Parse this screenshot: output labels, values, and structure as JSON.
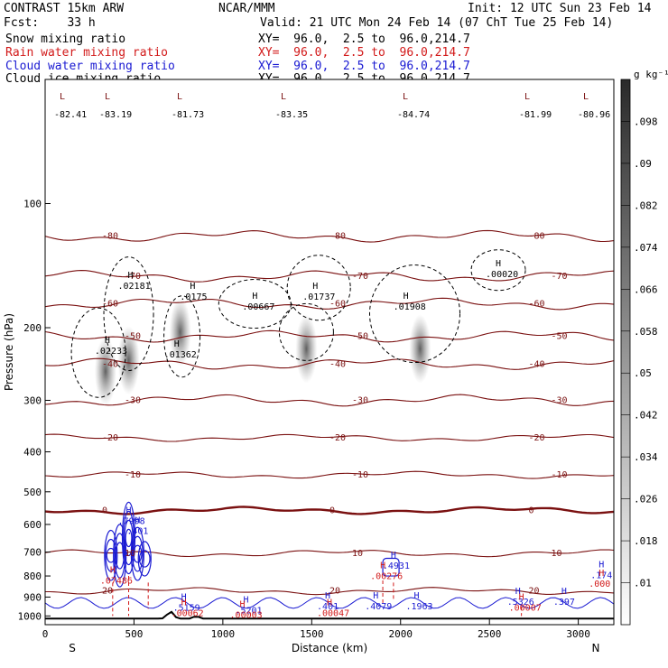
{
  "header": {
    "model": "CONTRAST 15km ARW",
    "forecast": "Fcst:    33 h",
    "center": "NCAR/MMM",
    "init": "Init: 12 UTC Sun 23 Feb 14",
    "valid": "Valid: 21 UTC Mon 24 Feb 14 (07 ChT Tue 25 Feb 14)",
    "fields": [
      {
        "name": "Snow mixing ratio",
        "xy": "XY=  96.0,  2.5 to  96.0,214.7",
        "color": "#000000"
      },
      {
        "name": "Rain water mixing ratio",
        "xy": "XY=  96.0,  2.5 to  96.0,214.7",
        "color": "#d21a1a"
      },
      {
        "name": "Cloud water mixing ratio",
        "xy": "XY=  96.0,  2.5 to  96.0,214.7",
        "color": "#1a1ad2"
      },
      {
        "name": "Cloud ice mixing ratio",
        "xy": "XY=  96.0,  2.5 to  96.0,214.7",
        "color": "#000000"
      }
    ]
  },
  "chart_data": {
    "type": "contour",
    "xlabel": "Distance (km)",
    "ylabel": "Pressure (hPa)",
    "xlim": [
      0,
      3200
    ],
    "ylim": [
      1050,
      50
    ],
    "y_scale": "log",
    "x_ticks": [
      0,
      500,
      1000,
      1500,
      2000,
      2500,
      3000
    ],
    "y_ticks": [
      100,
      200,
      300,
      400,
      500,
      600,
      700,
      800,
      900,
      1000
    ],
    "x_end_labels": {
      "left": "S",
      "right": "N"
    },
    "colorbar": {
      "unit": "g kg⁻¹",
      "ticks": [
        ".01",
        ".018",
        ".026",
        ".034",
        ".042",
        ".05",
        ".058",
        ".066",
        ".074",
        ".082",
        ".09",
        ".098"
      ]
    },
    "temperature_contours": {
      "color": "#7a1010",
      "levels": [
        {
          "label": "-80",
          "p": 120
        },
        {
          "label": "-70",
          "p": 150
        },
        {
          "label": "-60",
          "p": 175
        },
        {
          "label": "-50",
          "p": 210
        },
        {
          "label": "-40",
          "p": 245
        },
        {
          "label": "-30",
          "p": 300
        },
        {
          "label": "-20",
          "p": 370
        },
        {
          "label": "-10",
          "p": 455
        },
        {
          "label": "0",
          "p": 555
        },
        {
          "label": "10",
          "p": 705
        },
        {
          "label": "20",
          "p": 870
        }
      ],
      "minima": [
        "-82.41",
        "-83.19",
        "-81.73",
        "-83.35",
        "-84.74",
        "-81.99",
        "-80.96"
      ]
    },
    "ice_maxima": [
      {
        "label": ".02233",
        "x": 350,
        "p": 230
      },
      {
        "label": ".02181",
        "x": 480,
        "p": 160
      },
      {
        "label": ".0175",
        "x": 830,
        "p": 170
      },
      {
        "label": ".01362",
        "x": 740,
        "p": 235
      },
      {
        "label": ".00667",
        "x": 1180,
        "p": 180
      },
      {
        "label": ".01737",
        "x": 1520,
        "p": 170
      },
      {
        "label": ".01908",
        "x": 2030,
        "p": 180
      },
      {
        "label": ".00020",
        "x": 2550,
        "p": 150
      }
    ],
    "cloud_water_maxima": [
      {
        "label": ".7998",
        "x": 470,
        "p": 595
      },
      {
        "label": ".401",
        "x": 520,
        "p": 630
      },
      {
        "label": ".4931",
        "x": 1960,
        "p": 765
      },
      {
        "label": ".5159",
        "x": 780,
        "p": 965
      },
      {
        "label": ".5201",
        "x": 1130,
        "p": 980
      },
      {
        "label": ".401",
        "x": 1590,
        "p": 960
      },
      {
        "label": ".4079",
        "x": 1860,
        "p": 960
      },
      {
        "label": ".1963",
        "x": 2090,
        "p": 960
      },
      {
        "label": ".5326",
        "x": 2660,
        "p": 935
      },
      {
        "label": ".397",
        "x": 2920,
        "p": 935
      },
      {
        "label": ".174",
        "x": 3130,
        "p": 805
      }
    ],
    "rain_water_maxima": [
      {
        "label": ".07486",
        "x": 380,
        "p": 830
      },
      {
        "label": ".00276",
        "x": 1900,
        "p": 810
      },
      {
        "label": ".00062",
        "x": 780,
        "p": 995
      },
      {
        "label": ".00003",
        "x": 1110,
        "p": 1005
      },
      {
        "label": ".00047",
        "x": 1600,
        "p": 995
      },
      {
        "label": ".00007",
        "x": 2680,
        "p": 965
      },
      {
        "label": ".000",
        "x": 3130,
        "p": 845
      }
    ]
  }
}
